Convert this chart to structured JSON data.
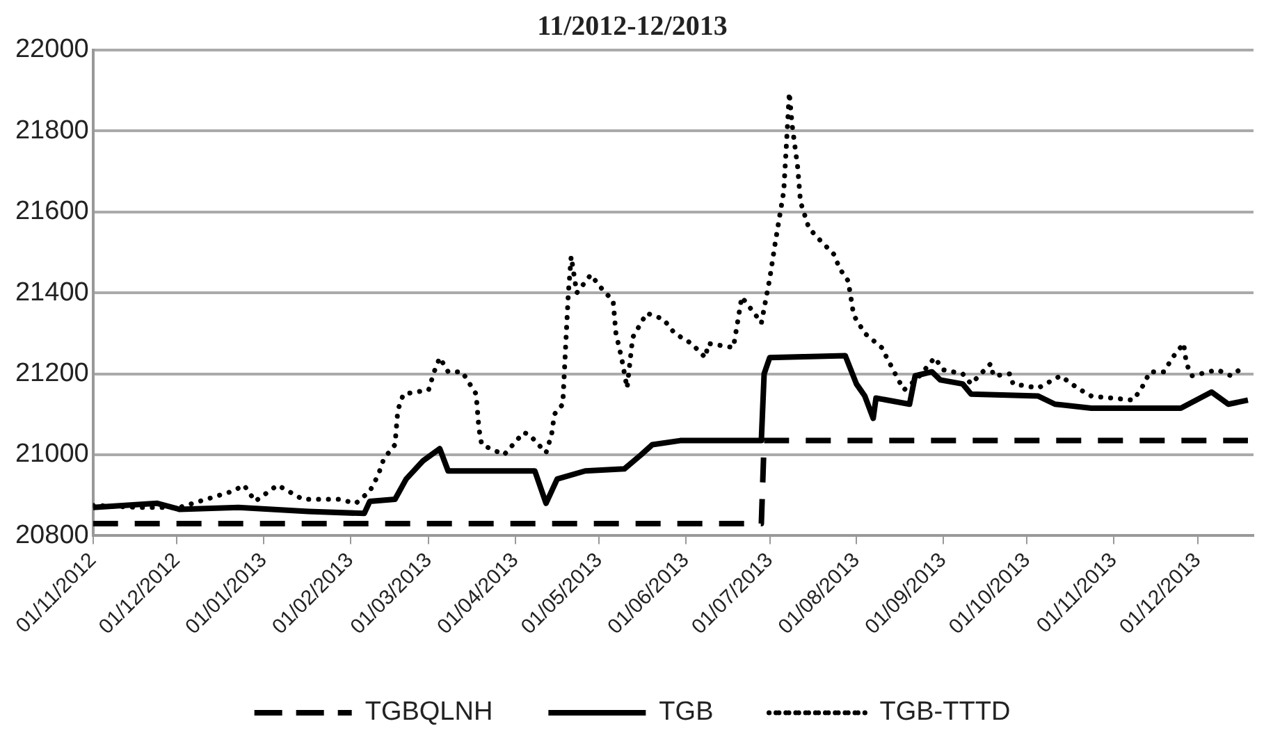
{
  "chart_data": {
    "type": "line",
    "title": "11/2012-12/2013",
    "xlim": [
      "2012-11-01",
      "2013-12-21"
    ],
    "xticks": [
      {
        "value": "2012-11-01",
        "label": "01/11/2012"
      },
      {
        "value": "2012-12-01",
        "label": "01/12/2012"
      },
      {
        "value": "2013-01-01",
        "label": "01/01/2013"
      },
      {
        "value": "2013-02-01",
        "label": "01/02/2013"
      },
      {
        "value": "2013-03-01",
        "label": "01/03/2013"
      },
      {
        "value": "2013-04-01",
        "label": "01/04/2013"
      },
      {
        "value": "2013-05-01",
        "label": "01/05/2013"
      },
      {
        "value": "2013-06-01",
        "label": "01/06/2013"
      },
      {
        "value": "2013-07-01",
        "label": "01/07/2013"
      },
      {
        "value": "2013-08-01",
        "label": "01/08/2013"
      },
      {
        "value": "2013-09-01",
        "label": "01/09/2013"
      },
      {
        "value": "2013-10-01",
        "label": "01/10/2013"
      },
      {
        "value": "2013-11-01",
        "label": "01/11/2013"
      },
      {
        "value": "2013-12-01",
        "label": "01/12/2013"
      }
    ],
    "ylim": [
      20800,
      22000
    ],
    "yticks": [
      20800,
      21000,
      21200,
      21400,
      21600,
      21800,
      22000
    ],
    "grid": "y",
    "legend": "bottom",
    "marker": "none",
    "series": [
      {
        "name": "TGBQLNH",
        "color": "#000000",
        "line_style": "dashed",
        "x": [
          "2012-11-01",
          "2013-06-28",
          "2013-06-29",
          "2013-12-19"
        ],
        "values": [
          20830,
          20830,
          21035,
          21035
        ]
      },
      {
        "name": "TGB",
        "color": "#000000",
        "line_style": "solid",
        "x": [
          "2012-11-01",
          "2012-11-24",
          "2012-12-02",
          "2012-12-23",
          "2013-01-17",
          "2013-02-06",
          "2013-02-08",
          "2013-02-17",
          "2013-02-21",
          "2013-02-27",
          "2013-03-05",
          "2013-03-08",
          "2013-04-08",
          "2013-04-12",
          "2013-04-16",
          "2013-04-26",
          "2013-05-10",
          "2013-05-16",
          "2013-05-20",
          "2013-05-30",
          "2013-06-28",
          "2013-06-29",
          "2013-07-01",
          "2013-07-28",
          "2013-08-01",
          "2013-08-04",
          "2013-08-07",
          "2013-08-08",
          "2013-08-20",
          "2013-08-22",
          "2013-08-28",
          "2013-08-31",
          "2013-09-08",
          "2013-09-11",
          "2013-10-05",
          "2013-10-11",
          "2013-10-24",
          "2013-11-25",
          "2013-12-06",
          "2013-12-12",
          "2013-12-19"
        ],
        "values": [
          20870,
          20880,
          20865,
          20870,
          20860,
          20855,
          20885,
          20890,
          20940,
          20985,
          21015,
          20960,
          20960,
          20880,
          20940,
          20960,
          20965,
          21000,
          21025,
          21035,
          21035,
          21200,
          21240,
          21245,
          21175,
          21145,
          21090,
          21140,
          21125,
          21195,
          21205,
          21185,
          21175,
          21150,
          21145,
          21125,
          21115,
          21115,
          21155,
          21125,
          21135
        ]
      },
      {
        "name": "TGB-TTTD",
        "color": "#000000",
        "line_style": "dotted",
        "x": [
          "2012-11-01",
          "2012-11-17",
          "2012-12-02",
          "2012-12-21",
          "2012-12-25",
          "2012-12-29",
          "2013-01-06",
          "2013-01-15",
          "2013-01-28",
          "2013-02-03",
          "2013-02-08",
          "2013-02-11",
          "2013-02-13",
          "2013-02-17",
          "2013-02-18",
          "2013-02-20",
          "2013-03-01",
          "2013-03-03",
          "2013-03-05",
          "2013-03-08",
          "2013-03-13",
          "2013-03-18",
          "2013-03-19",
          "2013-03-20",
          "2013-03-28",
          "2013-04-04",
          "2013-04-06",
          "2013-04-12",
          "2013-04-14",
          "2013-04-15",
          "2013-04-18",
          "2013-04-19",
          "2013-04-20",
          "2013-04-21",
          "2013-04-23",
          "2013-04-28",
          "2013-05-02",
          "2013-05-06",
          "2013-05-07",
          "2013-05-09",
          "2013-05-11",
          "2013-05-13",
          "2013-05-18",
          "2013-05-24",
          "2013-05-28",
          "2013-06-03",
          "2013-06-08",
          "2013-06-09",
          "2013-06-18",
          "2013-06-21",
          "2013-06-26",
          "2013-06-28",
          "2013-07-01",
          "2013-07-03",
          "2013-07-06",
          "2013-07-07",
          "2013-07-08",
          "2013-07-09",
          "2013-07-11",
          "2013-07-12",
          "2013-07-15",
          "2013-07-19",
          "2013-07-24",
          "2013-07-26",
          "2013-07-29",
          "2013-07-30",
          "2013-07-31",
          "2013-08-04",
          "2013-08-10",
          "2013-08-13",
          "2013-08-16",
          "2013-08-18",
          "2013-08-23",
          "2013-08-29",
          "2013-09-01",
          "2013-09-08",
          "2013-09-11",
          "2013-09-18",
          "2013-09-19",
          "2013-09-25",
          "2013-09-26",
          "2013-10-05",
          "2013-10-13",
          "2013-10-19",
          "2013-10-24",
          "2013-11-08",
          "2013-11-11",
          "2013-11-14",
          "2013-11-19",
          "2013-11-22",
          "2013-11-26",
          "2013-11-27",
          "2013-11-29",
          "2013-12-08",
          "2013-12-13",
          "2013-12-17"
        ],
        "values": [
          20875,
          20870,
          20870,
          20910,
          20925,
          20885,
          20925,
          20890,
          20890,
          20880,
          20910,
          20950,
          20990,
          21025,
          21110,
          21150,
          21160,
          21205,
          21240,
          21205,
          21205,
          21150,
          21065,
          21025,
          21000,
          21055,
          21050,
          21005,
          21050,
          21100,
          21125,
          21265,
          21400,
          21490,
          21400,
          21445,
          21410,
          21380,
          21300,
          21240,
          21165,
          21290,
          21350,
          21335,
          21300,
          21275,
          21240,
          21275,
          21265,
          21390,
          21345,
          21325,
          21435,
          21525,
          21650,
          21770,
          21895,
          21815,
          21710,
          21625,
          21560,
          21530,
          21495,
          21460,
          21430,
          21390,
          21345,
          21300,
          21265,
          21225,
          21185,
          21160,
          21190,
          21240,
          21210,
          21200,
          21175,
          21225,
          21195,
          21200,
          21175,
          21165,
          21195,
          21165,
          21145,
          21135,
          21165,
          21205,
          21205,
          21240,
          21275,
          21225,
          21195,
          21210,
          21195,
          21215
        ]
      }
    ]
  }
}
